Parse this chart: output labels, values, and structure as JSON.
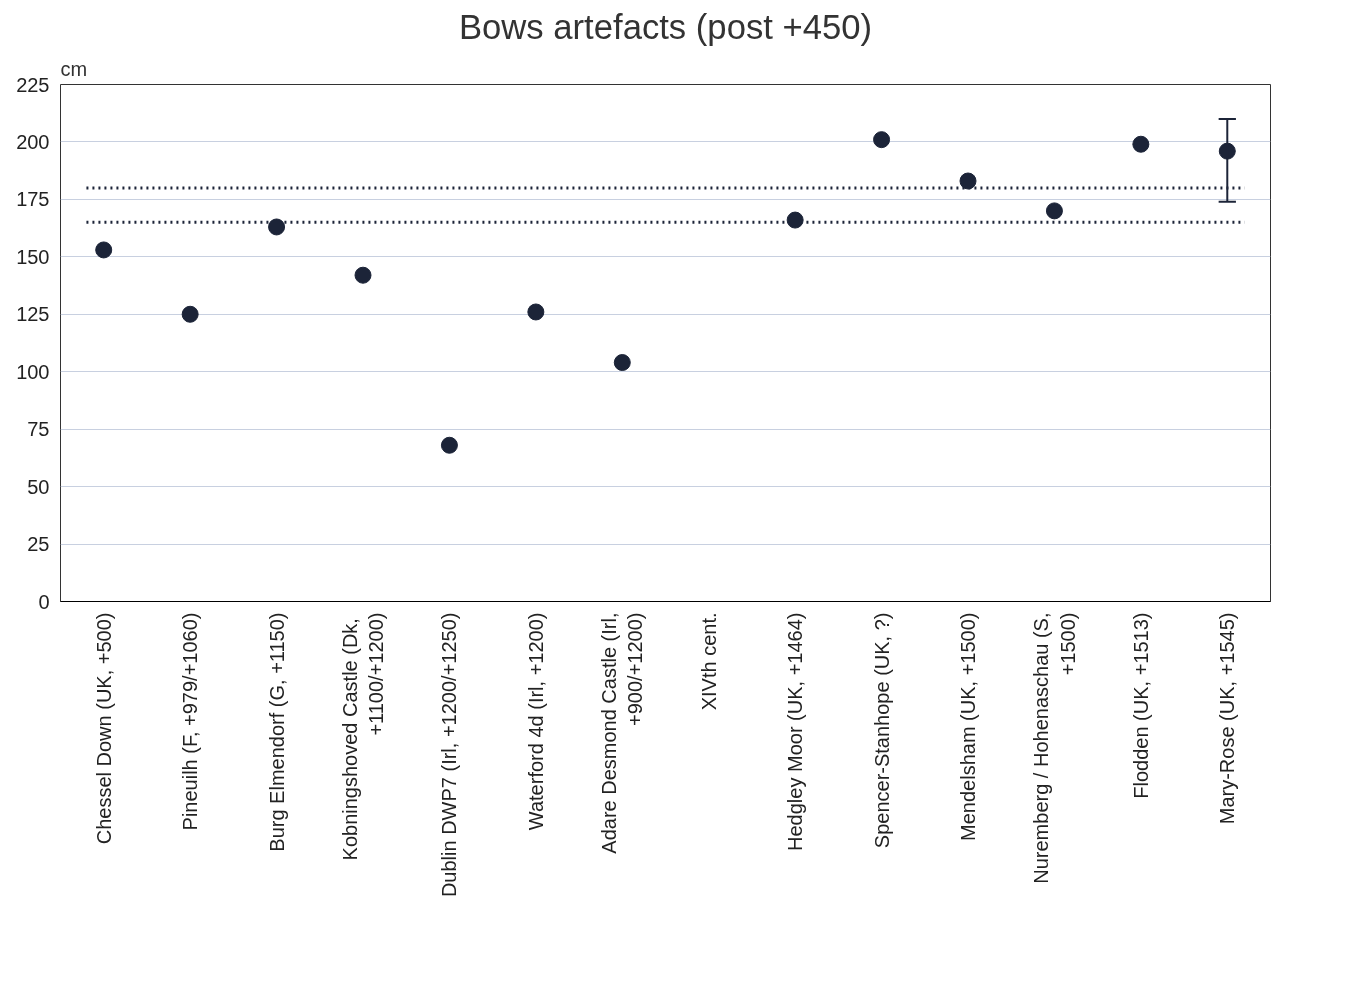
{
  "chart_data": {
    "type": "scatter",
    "title": "Bows artefacts (post +450)",
    "ylabel": "cm",
    "categories": [
      "Chessel Down (UK, +500)",
      "Pineuilh (F, +979/+1060)",
      "Burg Elmendorf (G, +1150)",
      "Kobningshoved Castle  (Dk,\n+1100/+1200)",
      "Dublin DWP7 (Irl, +1200/+1250)",
      "Waterford 4d (Irl, +1200)",
      "Adare Desmond Castle (Irl,\n+900/+1200)",
      "XIVth cent.",
      "Hedgley Moor (UK, +1464)",
      "Spencer-Stanhope (UK, ?)",
      "Mendelsham (UK, +1500)",
      "Nuremberg / Hohenaschau (S,\n+1500)",
      "Flodden (UK, +1513)",
      "Mary-Rose (UK, +1545)"
    ],
    "series": [
      {
        "color": "#1c2438",
        "values": [
          153,
          125,
          163,
          142,
          68,
          126,
          104,
          null,
          166,
          201,
          183,
          170,
          199,
          196
        ],
        "errors": [
          null,
          null,
          null,
          null,
          null,
          null,
          null,
          null,
          null,
          null,
          null,
          null,
          null,
          [
            174,
            210
          ]
        ]
      }
    ],
    "ylim": [
      0,
      225
    ],
    "yticks": [
      0,
      25,
      50,
      75,
      100,
      125,
      150,
      175,
      200,
      225
    ],
    "grid": "y",
    "marker": "circle",
    "ref_lines": [
      {
        "axis": "y",
        "value": 180,
        "color": "#1c2438",
        "line_style": "dotted"
      },
      {
        "axis": "y",
        "value": 165,
        "color": "#1c2438",
        "line_style": "dotted"
      }
    ]
  }
}
